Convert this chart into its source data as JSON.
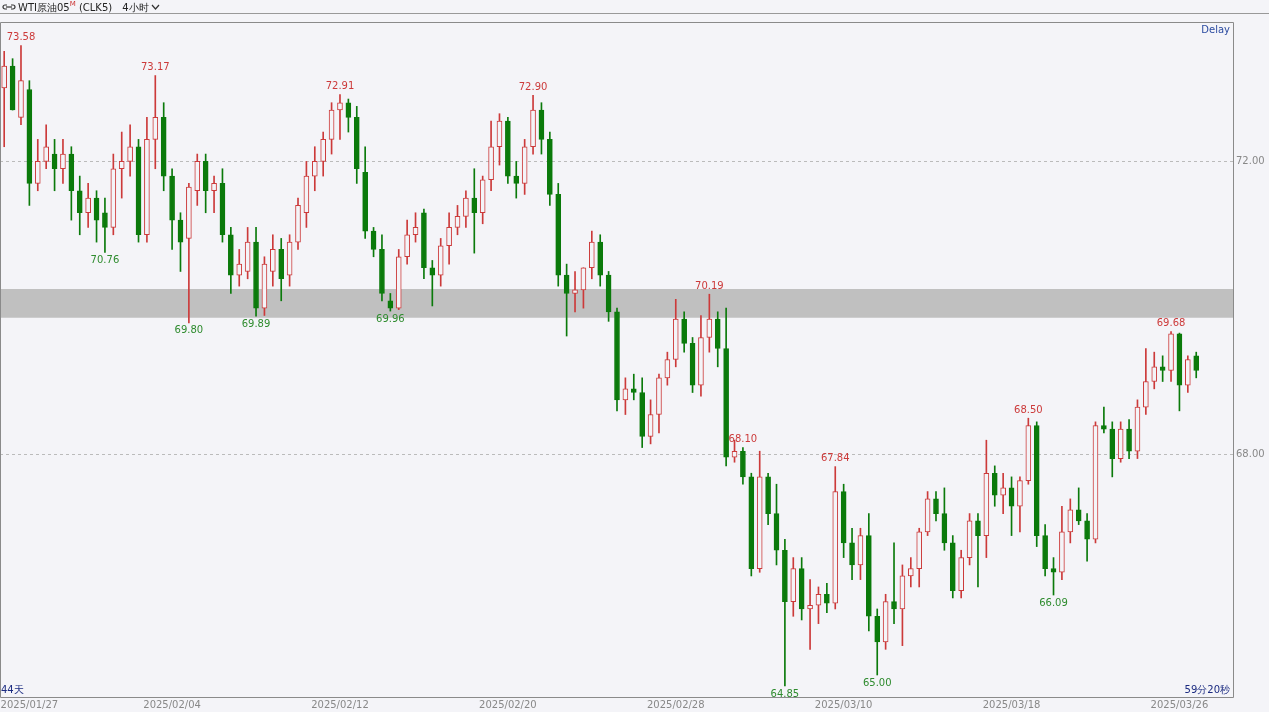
{
  "chart_data": {
    "type": "candlestick",
    "title": "WTI原油05$^{M}$ (CLK5)",
    "subtitle": "4小时",
    "categories": [
      null,
      null,
      null,
      "2025/01/27",
      null,
      null,
      null,
      null,
      null,
      null,
      null,
      null,
      null,
      null,
      null,
      null,
      null,
      null,
      null,
      null,
      "2025/02/04",
      null,
      null,
      null,
      null,
      null,
      null,
      null,
      null,
      null,
      null,
      null,
      null,
      null,
      null,
      null,
      null,
      null,
      null,
      null,
      "2025/02/12",
      null,
      null,
      null,
      null,
      null,
      null,
      null,
      null,
      null,
      null,
      null,
      null,
      null,
      null,
      null,
      null,
      null,
      null,
      null,
      "2025/02/20",
      null,
      null,
      null,
      null,
      null,
      null,
      null,
      null,
      null,
      null,
      null,
      null,
      null,
      null,
      null,
      null,
      null,
      null,
      null,
      "2025/02/28",
      null,
      null,
      null,
      null,
      null,
      null,
      null,
      null,
      null,
      null,
      null,
      null,
      null,
      null,
      null,
      null,
      null,
      null,
      null,
      "2025/03/10",
      null,
      null,
      null,
      null,
      null,
      null,
      null,
      null,
      null,
      null,
      null,
      null,
      null,
      null,
      null,
      null,
      null,
      null,
      null,
      "2025/03/18",
      null,
      null,
      null,
      null,
      null,
      null,
      null,
      null,
      null,
      null,
      null,
      null,
      null,
      null,
      null,
      null,
      null,
      null,
      null,
      "2025/03/26",
      null,
      null,
      null,
      null,
      null,
      null
    ],
    "ohlc": [
      [
        73.0,
        73.5,
        72.2,
        73.3
      ],
      [
        73.3,
        73.4,
        72.7,
        72.7
      ],
      [
        72.6,
        73.58,
        72.5,
        73.1
      ],
      [
        72.98,
        73.1,
        71.4,
        71.7
      ],
      [
        71.7,
        72.3,
        71.6,
        72.0
      ],
      [
        72.0,
        72.5,
        71.9,
        72.2
      ],
      [
        72.1,
        72.3,
        71.6,
        71.9
      ],
      [
        71.9,
        72.3,
        71.7,
        72.1
      ],
      [
        72.1,
        72.2,
        71.2,
        71.6
      ],
      [
        71.6,
        71.8,
        71.0,
        71.3
      ],
      [
        71.3,
        71.7,
        71.1,
        71.5
      ],
      [
        71.5,
        71.6,
        70.9,
        71.2
      ],
      [
        71.3,
        71.5,
        70.76,
        71.1
      ],
      [
        71.1,
        72.1,
        71.0,
        71.9
      ],
      [
        71.9,
        72.4,
        71.5,
        72.0
      ],
      [
        72.0,
        72.5,
        71.8,
        72.2
      ],
      [
        72.2,
        72.3,
        70.9,
        71.0
      ],
      [
        71.0,
        72.6,
        70.9,
        72.3
      ],
      [
        72.3,
        73.17,
        71.9,
        72.6
      ],
      [
        72.6,
        72.8,
        71.6,
        71.8
      ],
      [
        71.8,
        71.9,
        70.8,
        71.2
      ],
      [
        71.2,
        71.3,
        70.5,
        70.9
      ],
      [
        70.95,
        71.7,
        69.8,
        71.65
      ],
      [
        71.6,
        72.1,
        71.4,
        72.0
      ],
      [
        72.0,
        72.1,
        71.3,
        71.6
      ],
      [
        71.6,
        71.8,
        71.3,
        71.7
      ],
      [
        71.7,
        71.9,
        70.9,
        71.0
      ],
      [
        71.0,
        71.1,
        70.2,
        70.45
      ],
      [
        70.45,
        70.8,
        70.3,
        70.6
      ],
      [
        70.5,
        71.1,
        70.4,
        70.9
      ],
      [
        70.9,
        71.1,
        69.89,
        70.0
      ],
      [
        70.0,
        70.7,
        69.9,
        70.6
      ],
      [
        70.5,
        71.0,
        70.3,
        70.8
      ],
      [
        70.8,
        70.95,
        70.1,
        70.4
      ],
      [
        70.45,
        71.0,
        70.3,
        70.9
      ],
      [
        70.9,
        71.5,
        70.8,
        71.4
      ],
      [
        71.3,
        72.0,
        71.1,
        71.8
      ],
      [
        71.8,
        72.2,
        71.6,
        72.0
      ],
      [
        72.0,
        72.4,
        71.8,
        72.3
      ],
      [
        72.3,
        72.8,
        72.1,
        72.7
      ],
      [
        72.7,
        72.91,
        72.3,
        72.8
      ],
      [
        72.8,
        72.85,
        72.4,
        72.6
      ],
      [
        72.6,
        72.75,
        71.7,
        71.9
      ],
      [
        71.85,
        72.2,
        70.95,
        71.05
      ],
      [
        71.05,
        71.1,
        70.7,
        70.8
      ],
      [
        70.8,
        71.0,
        70.1,
        70.2
      ],
      [
        70.1,
        70.2,
        69.96,
        70.0
      ],
      [
        70.0,
        70.8,
        69.98,
        70.7
      ],
      [
        70.7,
        71.2,
        70.6,
        71.0
      ],
      [
        71.0,
        71.3,
        70.9,
        71.1
      ],
      [
        71.3,
        71.35,
        70.4,
        70.55
      ],
      [
        70.55,
        70.65,
        70.03,
        70.45
      ],
      [
        70.45,
        70.95,
        70.3,
        70.85
      ],
      [
        70.85,
        71.3,
        70.6,
        71.1
      ],
      [
        71.1,
        71.4,
        71.0,
        71.25
      ],
      [
        71.25,
        71.6,
        71.1,
        71.5
      ],
      [
        71.5,
        71.9,
        70.75,
        71.3
      ],
      [
        71.3,
        71.8,
        71.15,
        71.75
      ],
      [
        71.75,
        72.55,
        71.6,
        72.2
      ],
      [
        72.2,
        72.65,
        71.95,
        72.55
      ],
      [
        72.55,
        72.6,
        71.7,
        71.8
      ],
      [
        71.8,
        72.0,
        71.5,
        71.7
      ],
      [
        71.7,
        72.3,
        71.55,
        72.2
      ],
      [
        72.2,
        72.9,
        72.1,
        72.7
      ],
      [
        72.7,
        72.8,
        72.1,
        72.3
      ],
      [
        72.3,
        72.4,
        71.4,
        71.55
      ],
      [
        71.55,
        71.7,
        70.3,
        70.45
      ],
      [
        70.45,
        70.6,
        69.62,
        70.2
      ],
      [
        70.2,
        70.5,
        69.95,
        70.25
      ],
      [
        70.25,
        70.55,
        70.0,
        70.55
      ],
      [
        70.55,
        71.05,
        70.4,
        70.9
      ],
      [
        70.9,
        71.0,
        70.3,
        70.45
      ],
      [
        70.45,
        70.5,
        69.82,
        69.95
      ],
      [
        69.95,
        70.0,
        68.6,
        68.75
      ],
      [
        68.75,
        69.05,
        68.55,
        68.9
      ],
      [
        68.9,
        69.1,
        68.75,
        68.85
      ],
      [
        68.85,
        69.05,
        68.1,
        68.25
      ],
      [
        68.25,
        68.75,
        68.15,
        68.55
      ],
      [
        68.55,
        69.1,
        68.3,
        69.05
      ],
      [
        69.05,
        69.4,
        68.95,
        69.3
      ],
      [
        69.3,
        70.12,
        69.2,
        69.85
      ],
      [
        69.85,
        69.95,
        69.4,
        69.52
      ],
      [
        69.52,
        69.6,
        68.85,
        68.95
      ],
      [
        68.95,
        69.9,
        68.8,
        69.6
      ],
      [
        69.6,
        70.19,
        69.4,
        69.85
      ],
      [
        69.85,
        69.95,
        69.2,
        69.45
      ],
      [
        69.45,
        70.0,
        67.85,
        67.97
      ],
      [
        67.97,
        68.2,
        67.9,
        68.05
      ],
      [
        68.05,
        68.1,
        67.6,
        67.7
      ],
      [
        67.7,
        67.75,
        66.35,
        66.45
      ],
      [
        66.45,
        68.05,
        66.4,
        67.7
      ],
      [
        67.7,
        67.75,
        67.05,
        67.2
      ],
      [
        67.2,
        67.6,
        66.5,
        66.7
      ],
      [
        66.7,
        66.85,
        64.85,
        66.0
      ],
      [
        66.0,
        66.6,
        65.8,
        66.45
      ],
      [
        66.45,
        66.6,
        65.75,
        65.9
      ],
      [
        65.9,
        66.3,
        65.35,
        65.95
      ],
      [
        65.95,
        66.2,
        65.7,
        66.1
      ],
      [
        66.1,
        66.25,
        65.85,
        65.98
      ],
      [
        65.98,
        67.84,
        65.9,
        67.5
      ],
      [
        67.5,
        67.6,
        66.6,
        66.8
      ],
      [
        66.8,
        67.0,
        66.3,
        66.5
      ],
      [
        66.5,
        67.0,
        66.3,
        66.9
      ],
      [
        66.9,
        67.2,
        65.6,
        65.8
      ],
      [
        65.8,
        65.9,
        65.0,
        65.45
      ],
      [
        65.45,
        66.1,
        65.35,
        66.0
      ],
      [
        66.0,
        66.8,
        65.7,
        65.9
      ],
      [
        65.9,
        66.5,
        65.4,
        66.35
      ],
      [
        66.35,
        66.6,
        66.2,
        66.45
      ],
      [
        66.45,
        67.0,
        66.2,
        66.95
      ],
      [
        66.95,
        67.5,
        66.9,
        67.4
      ],
      [
        67.4,
        67.5,
        67.1,
        67.2
      ],
      [
        67.2,
        67.55,
        66.7,
        66.8
      ],
      [
        66.8,
        66.9,
        66.05,
        66.15
      ],
      [
        66.15,
        66.7,
        66.05,
        66.6
      ],
      [
        66.6,
        67.2,
        66.5,
        67.1
      ],
      [
        67.1,
        67.2,
        66.2,
        66.9
      ],
      [
        66.9,
        68.2,
        66.6,
        67.75
      ],
      [
        67.75,
        67.85,
        67.3,
        67.45
      ],
      [
        67.45,
        67.75,
        67.2,
        67.55
      ],
      [
        67.55,
        67.7,
        66.9,
        67.3
      ],
      [
        67.3,
        67.7,
        66.95,
        67.65
      ],
      [
        67.65,
        68.5,
        67.6,
        68.4
      ],
      [
        68.4,
        68.45,
        66.75,
        66.9
      ],
      [
        66.9,
        67.05,
        66.35,
        66.45
      ],
      [
        66.45,
        66.6,
        66.09,
        66.4
      ],
      [
        66.4,
        67.3,
        66.3,
        66.95
      ],
      [
        66.95,
        67.4,
        66.8,
        67.25
      ],
      [
        67.25,
        67.55,
        67.05,
        67.1
      ],
      [
        67.1,
        67.2,
        66.55,
        66.85
      ],
      [
        66.85,
        68.45,
        66.8,
        68.4
      ],
      [
        68.4,
        68.65,
        68.3,
        68.35
      ],
      [
        68.35,
        68.45,
        67.7,
        67.95
      ],
      [
        67.95,
        68.45,
        67.9,
        68.35
      ],
      [
        68.35,
        68.48,
        67.95,
        68.05
      ],
      [
        68.05,
        68.75,
        67.95,
        68.65
      ],
      [
        68.65,
        69.45,
        68.55,
        69.0
      ],
      [
        69.0,
        69.4,
        68.9,
        69.2
      ],
      [
        69.2,
        69.35,
        69.0,
        69.15
      ],
      [
        69.15,
        69.68,
        69.0,
        69.65
      ],
      [
        69.65,
        69.66,
        68.6,
        68.95
      ],
      [
        68.95,
        69.35,
        68.85,
        69.3
      ],
      [
        69.35,
        69.4,
        69.05,
        69.15
      ],
      null,
      null,
      null,
      null
    ],
    "ylim": [
      64.7,
      73.9
    ],
    "yticks": [
      {
        "value": 72,
        "label": "72.00"
      },
      {
        "value": 68,
        "label": "68.00"
      }
    ],
    "grid": "y",
    "bands": [
      {
        "axis": "y",
        "from": 69.87,
        "to": 70.26,
        "color": "#c0c0c0"
      }
    ],
    "annotations": [
      {
        "text": "73.58",
        "y": 73.58
      },
      {
        "text": "73.17",
        "y": 73.17
      },
      {
        "text": "72.91",
        "y": 72.91
      },
      {
        "text": "72.90",
        "y": 72.9
      },
      {
        "text": "70.19",
        "y": 70.19
      },
      {
        "text": "67.84",
        "y": 67.84
      },
      {
        "text": "68.50",
        "y": 68.5
      },
      {
        "text": "69.68",
        "y": 69.68
      },
      {
        "text": "70.76",
        "y": 70.76
      },
      {
        "text": "69.80",
        "y": 69.8
      },
      {
        "text": "69.89",
        "y": 69.89
      },
      {
        "text": "69.96",
        "y": 69.96
      },
      {
        "text": "68.10",
        "y": 68.1
      },
      {
        "text": "64.85",
        "y": 64.85
      },
      {
        "text": "65.00",
        "y": 65.0
      },
      {
        "text": "66.09",
        "y": 66.09
      },
      "Delay",
      "44天",
      "59分20秒"
    ]
  }
}
